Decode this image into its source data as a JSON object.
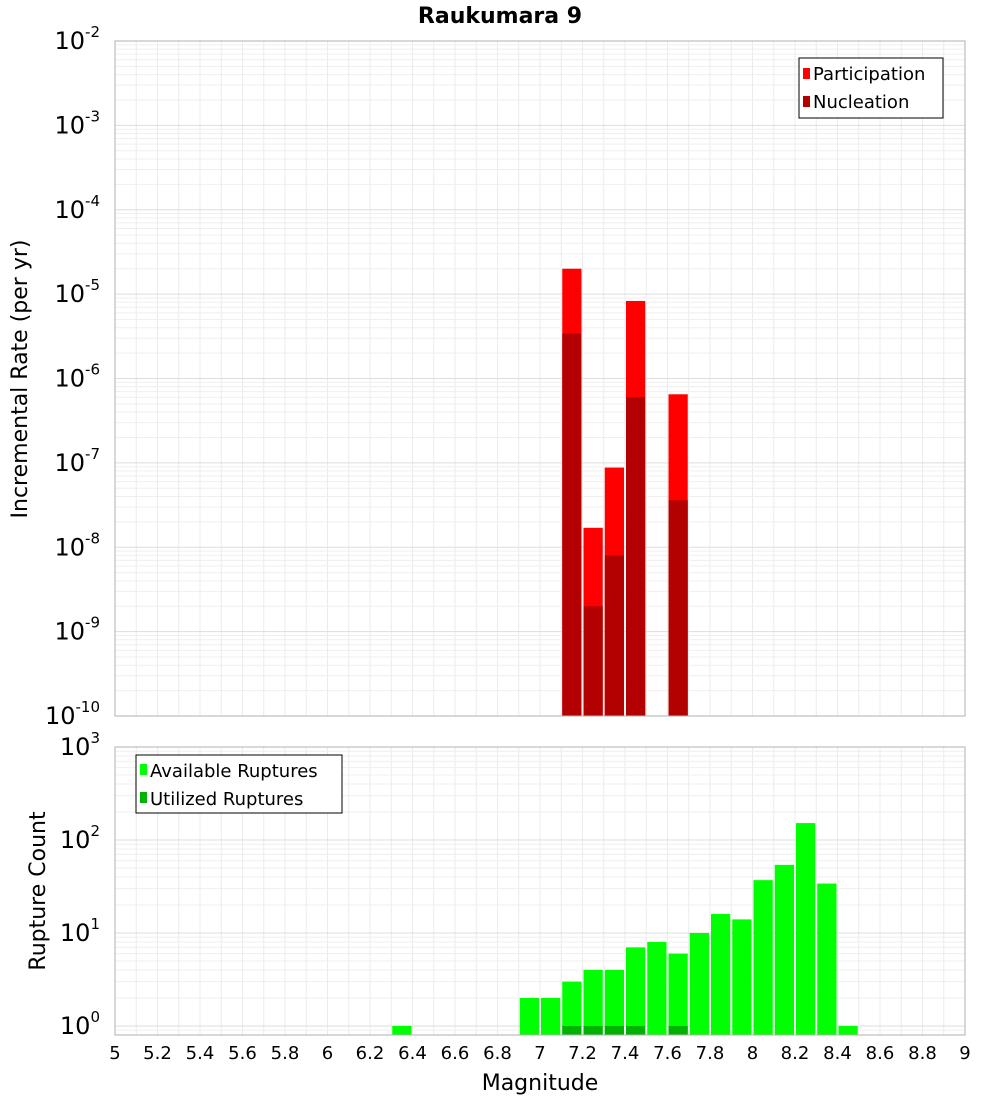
{
  "title": "Raukumara 9",
  "chart_data": [
    {
      "type": "bar",
      "title": "Raukumara 9",
      "xlabel": "",
      "ylabel": "Incremental Rate (per yr)",
      "yscale": "log",
      "ylim": [
        1e-10,
        0.01
      ],
      "xlim": [
        5,
        9
      ],
      "grid": true,
      "legend_position": "top-right",
      "y_ticks": [
        {
          "base": "10",
          "exp": "-10"
        },
        {
          "base": "10",
          "exp": "-9"
        },
        {
          "base": "10",
          "exp": "-8"
        },
        {
          "base": "10",
          "exp": "-7"
        },
        {
          "base": "10",
          "exp": "-6"
        },
        {
          "base": "10",
          "exp": "-5"
        },
        {
          "base": "10",
          "exp": "-4"
        },
        {
          "base": "10",
          "exp": "-3"
        },
        {
          "base": "10",
          "exp": "-2"
        }
      ],
      "series": [
        {
          "name": "Participation",
          "color": "#ff0000",
          "x": [
            7.15,
            7.25,
            7.35,
            7.45,
            7.65
          ],
          "values": [
            2e-05,
            1.7e-08,
            8.8e-08,
            8.3e-06,
            6.5e-07
          ]
        },
        {
          "name": "Nucleation",
          "color": "#b30000",
          "x": [
            7.15,
            7.25,
            7.35,
            7.45,
            7.65
          ],
          "values": [
            3.4e-06,
            2e-09,
            8e-09,
            6e-07,
            3.6e-08
          ]
        }
      ]
    },
    {
      "type": "bar",
      "xlabel": "Magnitude",
      "ylabel": "Rupture Count",
      "yscale": "log",
      "ylim": [
        0.8,
        1000
      ],
      "xlim": [
        5,
        9
      ],
      "grid": true,
      "legend_position": "top-left",
      "y_ticks": [
        {
          "base": "10",
          "exp": "0",
          "value": 1
        },
        {
          "base": "10",
          "exp": "1",
          "value": 10
        },
        {
          "base": "10",
          "exp": "2",
          "value": 100
        },
        {
          "base": "10",
          "exp": "3",
          "value": 1000
        }
      ],
      "x_ticks": [
        "5",
        "5.2",
        "5.4",
        "5.6",
        "5.8",
        "6",
        "6.2",
        "6.4",
        "6.6",
        "6.8",
        "7",
        "7.2",
        "7.4",
        "7.6",
        "7.8",
        "8",
        "8.2",
        "8.4",
        "8.6",
        "8.8",
        "9"
      ],
      "series": [
        {
          "name": "Available Ruptures",
          "color": "#00ff00",
          "x": [
            6.35,
            6.95,
            7.05,
            7.15,
            7.25,
            7.35,
            7.45,
            7.55,
            7.65,
            7.75,
            7.85,
            7.95,
            8.05,
            8.15,
            8.25,
            8.35,
            8.45
          ],
          "values": [
            1,
            2,
            2,
            3,
            4,
            4,
            7,
            8,
            6,
            10,
            16,
            14,
            37,
            54,
            152,
            34,
            1
          ]
        },
        {
          "name": "Utilized Ruptures",
          "color": "#00b300",
          "x": [
            7.15,
            7.25,
            7.35,
            7.45,
            7.65
          ],
          "values": [
            1,
            1,
            1,
            1,
            1
          ]
        }
      ]
    }
  ]
}
